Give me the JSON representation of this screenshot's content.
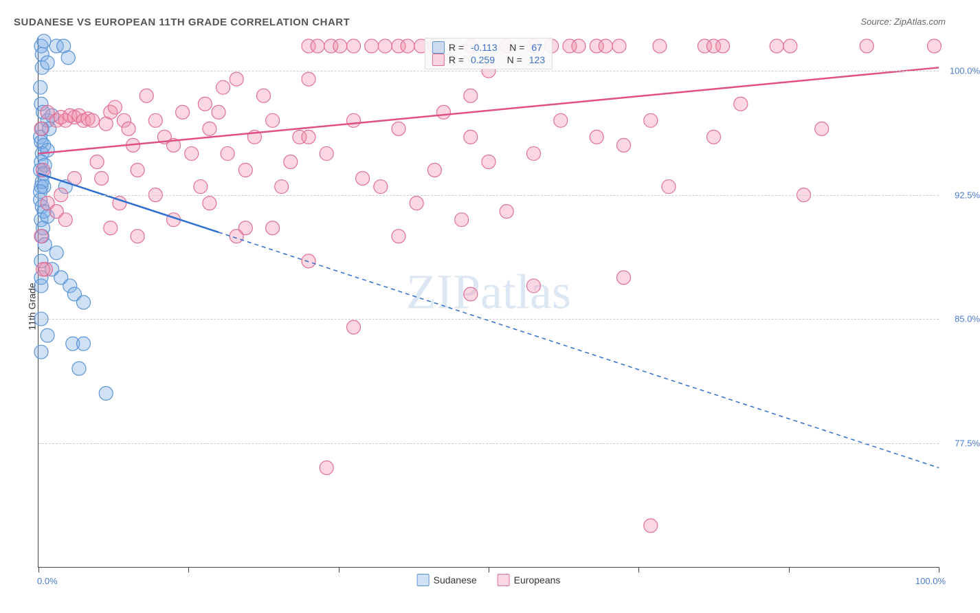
{
  "title": "SUDANESE VS EUROPEAN 11TH GRADE CORRELATION CHART",
  "source": "Source: ZipAtlas.com",
  "watermark": "ZIPatlas",
  "y_axis_label": "11th Grade",
  "chart": {
    "type": "scatter",
    "xlim": [
      0,
      100
    ],
    "ylim": [
      70,
      102
    ],
    "x_ticks": [
      0,
      16.67,
      33.33,
      50,
      66.67,
      83.33,
      100
    ],
    "y_grid": [
      77.5,
      85.0,
      92.5,
      100.0
    ],
    "y_tick_labels": [
      "77.5%",
      "85.0%",
      "92.5%",
      "100.0%"
    ],
    "x_left_label": "0.0%",
    "x_right_label": "100.0%",
    "background_color": "#ffffff",
    "grid_color": "#cccccc",
    "axis_color": "#444444",
    "tick_label_color": "#4a7bd0",
    "series": [
      {
        "name": "Sudanese",
        "color_fill": "rgba(120,170,230,0.35)",
        "color_stroke": "#5a94d6",
        "line_color": "#2e6fd0",
        "line_width": 2.5,
        "marker_radius": 10,
        "R": "-0.113",
        "N": "67",
        "trend": {
          "x1": 0,
          "y1": 93.8,
          "x2": 100,
          "y2": 76.0,
          "solid_until_x": 20
        },
        "points": [
          [
            0.3,
            101.5
          ],
          [
            0.4,
            101.0
          ],
          [
            0.6,
            101.8
          ],
          [
            0.4,
            100.2
          ],
          [
            0.2,
            99.0
          ],
          [
            1.0,
            100.5
          ],
          [
            2.0,
            101.5
          ],
          [
            2.8,
            101.5
          ],
          [
            3.3,
            100.8
          ],
          [
            0.3,
            98.0
          ],
          [
            0.5,
            97.5
          ],
          [
            1.0,
            97.0
          ],
          [
            1.5,
            97.3
          ],
          [
            0.4,
            96.5
          ],
          [
            0.2,
            96.0
          ],
          [
            1.2,
            96.5
          ],
          [
            0.3,
            95.7
          ],
          [
            0.6,
            95.5
          ],
          [
            0.4,
            95.0
          ],
          [
            1.0,
            95.2
          ],
          [
            0.3,
            94.5
          ],
          [
            0.7,
            94.3
          ],
          [
            0.2,
            94.0
          ],
          [
            0.6,
            93.8
          ],
          [
            0.4,
            93.3
          ],
          [
            0.3,
            93.0
          ],
          [
            0.6,
            93.0
          ],
          [
            0.2,
            92.7
          ],
          [
            0.2,
            92.2
          ],
          [
            0.4,
            91.8
          ],
          [
            0.6,
            91.5
          ],
          [
            0.3,
            91.0
          ],
          [
            0.5,
            90.5
          ],
          [
            1.0,
            91.2
          ],
          [
            3.0,
            93.0
          ],
          [
            0.4,
            90.0
          ],
          [
            0.7,
            89.5
          ],
          [
            2.0,
            89.0
          ],
          [
            0.3,
            88.5
          ],
          [
            1.5,
            88.0
          ],
          [
            0.3,
            87.5
          ],
          [
            0.3,
            87.0
          ],
          [
            2.5,
            87.5
          ],
          [
            3.5,
            87.0
          ],
          [
            4.0,
            86.5
          ],
          [
            5.0,
            86.0
          ],
          [
            0.3,
            85.0
          ],
          [
            1.0,
            84.0
          ],
          [
            3.8,
            83.5
          ],
          [
            5.0,
            83.5
          ],
          [
            0.3,
            83.0
          ],
          [
            4.5,
            82.0
          ],
          [
            7.5,
            80.5
          ]
        ]
      },
      {
        "name": "Europeans",
        "color_fill": "rgba(240,140,170,0.35)",
        "color_stroke": "#e06f96",
        "line_color": "#e04f86",
        "line_width": 2.5,
        "marker_radius": 10,
        "R": "0.259",
        "N": "123",
        "trend": {
          "x1": 0,
          "y1": 95.0,
          "x2": 100,
          "y2": 100.2,
          "solid_until_x": 100
        },
        "points": [
          [
            1.0,
            97.5
          ],
          [
            2.0,
            97.0
          ],
          [
            2.5,
            97.2
          ],
          [
            3.0,
            97.0
          ],
          [
            3.5,
            97.3
          ],
          [
            4.0,
            97.2
          ],
          [
            4.5,
            97.3
          ],
          [
            5.0,
            97.0
          ],
          [
            5.5,
            97.1
          ],
          [
            6.0,
            97.0
          ],
          [
            7.5,
            96.8
          ],
          [
            8.0,
            97.5
          ],
          [
            8.5,
            97.8
          ],
          [
            9.5,
            97.0
          ],
          [
            10.0,
            96.5
          ],
          [
            10.5,
            95.5
          ],
          [
            11.0,
            94.0
          ],
          [
            12.0,
            98.5
          ],
          [
            13.0,
            97.0
          ],
          [
            14.0,
            96.0
          ],
          [
            15.0,
            95.5
          ],
          [
            16.0,
            97.5
          ],
          [
            17.0,
            95.0
          ],
          [
            18.0,
            93.0
          ],
          [
            18.5,
            98.0
          ],
          [
            19.0,
            96.5
          ],
          [
            20.0,
            97.5
          ],
          [
            20.5,
            99.0
          ],
          [
            21.0,
            95.0
          ],
          [
            22.0,
            99.5
          ],
          [
            23.0,
            94.0
          ],
          [
            24.0,
            96.0
          ],
          [
            25.0,
            98.5
          ],
          [
            26.0,
            97.0
          ],
          [
            27.0,
            93.0
          ],
          [
            28.0,
            94.5
          ],
          [
            29.0,
            96.0
          ],
          [
            0.3,
            96.5
          ],
          [
            0.5,
            94.0
          ],
          [
            1.0,
            92.0
          ],
          [
            2.0,
            91.5
          ],
          [
            0.8,
            88.0
          ],
          [
            0.3,
            90.0
          ],
          [
            3.0,
            91.0
          ],
          [
            2.5,
            92.5
          ],
          [
            4.0,
            93.5
          ],
          [
            30.0,
            101.5
          ],
          [
            31.0,
            101.5
          ],
          [
            32.5,
            101.5
          ],
          [
            33.5,
            101.5
          ],
          [
            35.0,
            101.5
          ],
          [
            37.0,
            101.5
          ],
          [
            38.5,
            101.5
          ],
          [
            40.0,
            101.5
          ],
          [
            41.0,
            101.5
          ],
          [
            42.5,
            101.5
          ],
          [
            44.0,
            101.5
          ],
          [
            48.0,
            101.5
          ],
          [
            52.0,
            101.5
          ],
          [
            55.0,
            101.5
          ],
          [
            57.0,
            101.5
          ],
          [
            59.0,
            101.5
          ],
          [
            60.0,
            101.5
          ],
          [
            62.0,
            101.5
          ],
          [
            63.0,
            101.5
          ],
          [
            64.5,
            101.5
          ],
          [
            69.0,
            101.5
          ],
          [
            74.0,
            101.5
          ],
          [
            75.0,
            101.5
          ],
          [
            76.0,
            101.5
          ],
          [
            82.0,
            101.5
          ],
          [
            83.5,
            101.5
          ],
          [
            92.0,
            101.5
          ],
          [
            99.5,
            101.5
          ],
          [
            30.0,
            96.0
          ],
          [
            32.0,
            95.0
          ],
          [
            35.0,
            97.0
          ],
          [
            36.0,
            93.5
          ],
          [
            38.0,
            93.0
          ],
          [
            40.0,
            96.5
          ],
          [
            42.0,
            92.0
          ],
          [
            45.0,
            97.5
          ],
          [
            47.0,
            91.0
          ],
          [
            48.0,
            96.0
          ],
          [
            50.0,
            94.5
          ],
          [
            52.0,
            91.5
          ],
          [
            55.0,
            95.0
          ],
          [
            55.0,
            87.0
          ],
          [
            58.0,
            97.0
          ],
          [
            62.0,
            96.0
          ],
          [
            65.0,
            95.5
          ],
          [
            68.0,
            97.0
          ],
          [
            65.0,
            87.5
          ],
          [
            70.0,
            93.0
          ],
          [
            75.0,
            96.0
          ],
          [
            78.0,
            98.0
          ],
          [
            85.0,
            92.5
          ],
          [
            87.0,
            96.5
          ],
          [
            30.0,
            88.5
          ],
          [
            35.0,
            84.5
          ],
          [
            48.0,
            86.5
          ],
          [
            32.0,
            76.0
          ],
          [
            22.0,
            90.0
          ],
          [
            26.0,
            90.5
          ],
          [
            68.0,
            72.5
          ],
          [
            13.0,
            92.5
          ],
          [
            15.0,
            91.0
          ],
          [
            11.0,
            90.0
          ],
          [
            9.0,
            92.0
          ],
          [
            8.0,
            90.5
          ],
          [
            7.0,
            93.5
          ],
          [
            6.5,
            94.5
          ],
          [
            19.0,
            92.0
          ],
          [
            23.0,
            90.5
          ],
          [
            40.0,
            90.0
          ],
          [
            44.0,
            94.0
          ],
          [
            48.0,
            98.5
          ],
          [
            50.0,
            100.0
          ],
          [
            30.0,
            99.5
          ],
          [
            0.5,
            88.0
          ]
        ]
      }
    ],
    "bottom_legend": [
      {
        "label": "Sudanese",
        "fill": "rgba(120,170,230,0.35)",
        "stroke": "#5a94d6"
      },
      {
        "label": "Europeans",
        "fill": "rgba(240,140,170,0.35)",
        "stroke": "#e06f96"
      }
    ]
  }
}
